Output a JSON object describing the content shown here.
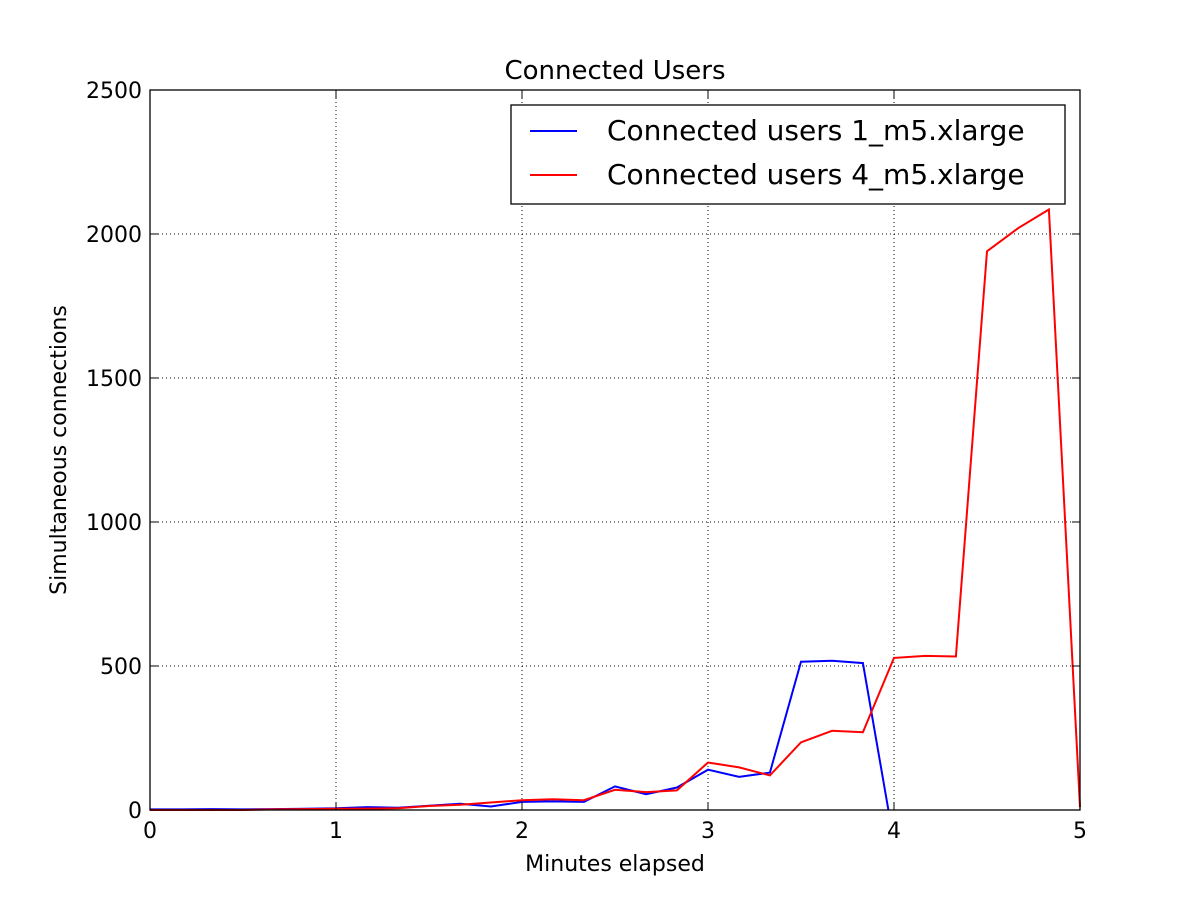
{
  "chart_data": {
    "type": "line",
    "title": "Connected Users",
    "xlabel": "Minutes elapsed",
    "ylabel": "Simultaneous connections",
    "xlim": [
      0,
      5
    ],
    "ylim": [
      0,
      2500
    ],
    "xticks": [
      0,
      1,
      2,
      3,
      4,
      5
    ],
    "xtick_labels": [
      "0",
      "1",
      "2",
      "3",
      "4",
      "5"
    ],
    "yticks": [
      0,
      500,
      1000,
      1500,
      2000,
      2500
    ],
    "ytick_labels": [
      "0",
      "500",
      "1000",
      "1500",
      "2000",
      "2500"
    ],
    "grid": true,
    "legend_position": "top-right",
    "series": [
      {
        "name": "Connected users 1_m5.xlarge",
        "color": "#0000ff",
        "x": [
          0,
          0.167,
          0.333,
          0.5,
          0.667,
          0.833,
          1.0,
          1.167,
          1.333,
          1.5,
          1.667,
          1.833,
          2.0,
          2.167,
          2.333,
          2.5,
          2.667,
          2.833,
          3.0,
          3.167,
          3.333,
          3.5,
          3.667,
          3.833,
          3.97
        ],
        "y": [
          2,
          2,
          3,
          2,
          3,
          4,
          6,
          10,
          8,
          15,
          22,
          12,
          28,
          30,
          28,
          82,
          55,
          78,
          140,
          115,
          130,
          515,
          518,
          510,
          0
        ]
      },
      {
        "name": "Connected users 4_m5.xlarge",
        "color": "#ff0000",
        "x": [
          0,
          0.167,
          0.333,
          0.5,
          0.667,
          0.833,
          1.0,
          1.167,
          1.333,
          1.5,
          1.667,
          1.833,
          2.0,
          2.167,
          2.333,
          2.5,
          2.667,
          2.833,
          3.0,
          3.167,
          3.333,
          3.5,
          3.667,
          3.833,
          4.0,
          4.167,
          4.333,
          4.5,
          4.667,
          4.833,
          5.0
        ],
        "y": [
          0,
          0,
          0,
          0,
          2,
          3,
          4,
          5,
          6,
          14,
          18,
          26,
          34,
          37,
          34,
          70,
          62,
          68,
          165,
          148,
          120,
          235,
          275,
          270,
          528,
          535,
          533,
          1940,
          2020,
          2085,
          10
        ]
      }
    ]
  }
}
